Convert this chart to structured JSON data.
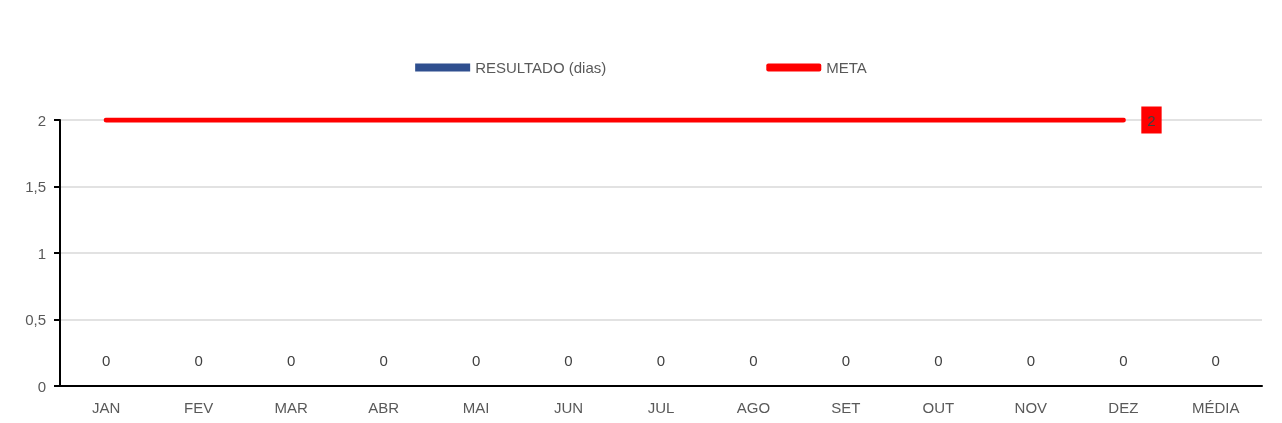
{
  "chart_data": {
    "type": "bar",
    "categories": [
      "JAN",
      "FEV",
      "MAR",
      "ABR",
      "MAI",
      "JUN",
      "JUL",
      "AGO",
      "SET",
      "OUT",
      "NOV",
      "DEZ",
      "MÉDIA"
    ],
    "series": [
      {
        "name": "RESULTADO (dias)",
        "color": "#2f4f8f",
        "values": [
          0,
          0,
          0,
          0,
          0,
          0,
          0,
          0,
          0,
          0,
          0,
          0,
          0
        ],
        "value_labels": [
          "0",
          "0",
          "0",
          "0",
          "0",
          "0",
          "0",
          "0",
          "0",
          "0",
          "0",
          "0",
          "0"
        ]
      },
      {
        "name": "META",
        "type": "line",
        "color": "#ff0000",
        "values": [
          2,
          2,
          2,
          2,
          2,
          2,
          2,
          2,
          2,
          2,
          2,
          2,
          null
        ],
        "value_labels": [
          null,
          null,
          null,
          null,
          null,
          null,
          null,
          null,
          null,
          null,
          null,
          "2",
          null
        ]
      }
    ],
    "ylim": [
      0,
      2
    ],
    "yticks": [
      0,
      {
        "value": 0.5,
        "label": "0,5"
      },
      1,
      {
        "value": 1.5,
        "label": "1,5"
      },
      2
    ],
    "grid": "y",
    "legend": "top",
    "marker": "none",
    "line_style": "solid"
  }
}
